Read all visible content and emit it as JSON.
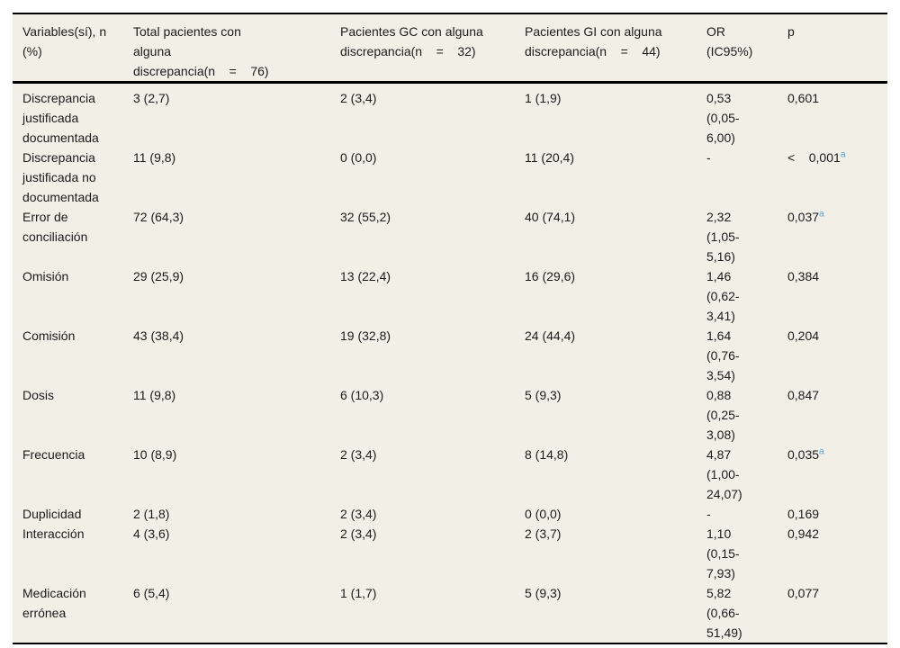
{
  "table": {
    "colors": {
      "background": "#f2efe6",
      "rule": "#000000",
      "text": "#1b1b1b",
      "footnote_marker": "#58a5d6"
    },
    "columns": [
      {
        "label": "Variables(sí), n\n(%)"
      },
      {
        "label": "Total pacientes con\nalguna\ndiscrepancia(n    =    76)"
      },
      {
        "label": "Pacientes GC con alguna\ndiscrepancia(n    =    32)"
      },
      {
        "label": "Pacientes GI con alguna\ndiscrepancia(n    =    44)"
      },
      {
        "label": "OR\n(IC95%)"
      },
      {
        "label": "p"
      }
    ],
    "rows": [
      {
        "variable": "Discrepancia\njustificada\ndocumentada",
        "total": "3 (2,7)",
        "gc": "2 (3,4)",
        "gi": "1 (1,9)",
        "or": "0,53\n(0,05-\n6,00)",
        "p": "0,601",
        "p_sup": ""
      },
      {
        "variable": "Discrepancia\njustificada no\ndocumentada",
        "total": "11 (9,8)",
        "gc": "0 (0,0)",
        "gi": "11 (20,4)",
        "or": "-",
        "p": "<    0,001",
        "p_sup": "a"
      },
      {
        "variable": "Error de\nconciliación",
        "total": "72 (64,3)",
        "gc": "32 (55,2)",
        "gi": "40 (74,1)",
        "or": "2,32\n(1,05-\n5,16)",
        "p": "0,037",
        "p_sup": "a"
      },
      {
        "variable": "Omisión",
        "total": "29 (25,9)",
        "gc": "13 (22,4)",
        "gi": "16 (29,6)",
        "or": "1,46\n(0,62-\n3,41)",
        "p": "0,384",
        "p_sup": ""
      },
      {
        "variable": "Comisión",
        "total": "43 (38,4)",
        "gc": "19 (32,8)",
        "gi": "24 (44,4)",
        "or": "1,64\n(0,76-\n3,54)",
        "p": "0,204",
        "p_sup": ""
      },
      {
        "variable": "Dosis",
        "total": "11 (9,8)",
        "gc": "6 (10,3)",
        "gi": "5 (9,3)",
        "or": "0,88\n(0,25-\n3,08)",
        "p": "0,847",
        "p_sup": ""
      },
      {
        "variable": "Frecuencia",
        "total": "10 (8,9)",
        "gc": "2 (3,4)",
        "gi": "8 (14,8)",
        "or": "4,87\n(1,00-\n24,07)",
        "p": "0,035",
        "p_sup": "a"
      },
      {
        "variable": "Duplicidad",
        "total": "2 (1,8)",
        "gc": "2 (3,4)",
        "gi": "0 (0,0)",
        "or": "-",
        "p": "0,169",
        "p_sup": ""
      },
      {
        "variable": "Interacción",
        "total": "4 (3,6)",
        "gc": "2 (3,4)",
        "gi": "2 (3,7)",
        "or": "1,10\n(0,15-\n7,93)",
        "p": "0,942",
        "p_sup": ""
      },
      {
        "variable": "Medicación\nerrónea",
        "total": "6 (5,4)",
        "gc": "1 (1,7)",
        "gi": "5 (9,3)",
        "or": "5,82\n(0,66-\n51,49)",
        "p": "0,077",
        "p_sup": ""
      }
    ]
  }
}
